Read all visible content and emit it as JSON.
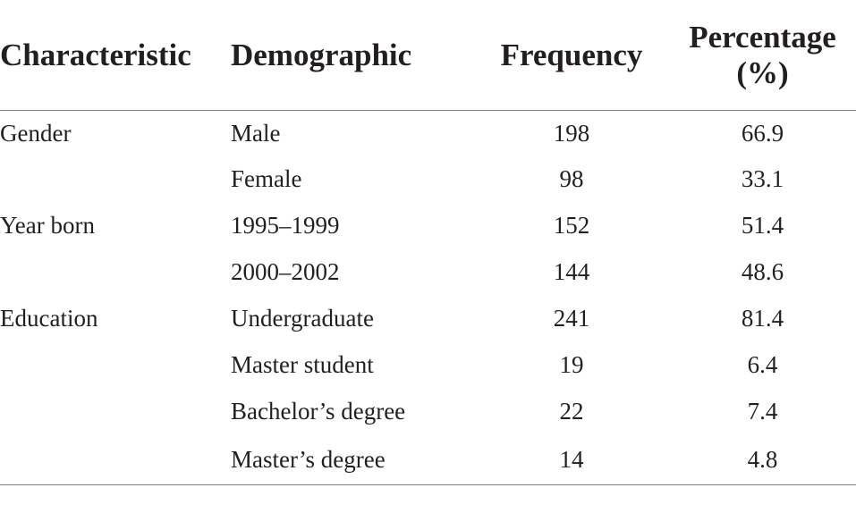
{
  "table": {
    "headers": {
      "characteristic": "Characteristic",
      "demographic": "Demographic",
      "frequency": "Frequency",
      "percentage_line1": "Percentage",
      "percentage_line2": "(%)"
    },
    "rows": [
      {
        "characteristic": "Gender",
        "demographic": "Male",
        "frequency": "198",
        "percentage": "66.9"
      },
      {
        "characteristic": "",
        "demographic": "Female",
        "frequency": "98",
        "percentage": "33.1"
      },
      {
        "characteristic": "Year born",
        "demographic": "1995–1999",
        "frequency": "152",
        "percentage": "51.4"
      },
      {
        "characteristic": "",
        "demographic": "2000–2002",
        "frequency": "144",
        "percentage": "48.6"
      },
      {
        "characteristic": "Education",
        "demographic": "Undergraduate",
        "frequency": "241",
        "percentage": "81.4"
      },
      {
        "characteristic": "",
        "demographic": "Master student",
        "frequency": "19",
        "percentage": "6.4"
      },
      {
        "characteristic": "",
        "demographic": "Bachelor’s degree",
        "frequency": "22",
        "percentage": "7.4"
      },
      {
        "characteristic": "",
        "demographic": "Master’s degree",
        "frequency": "14",
        "percentage": "4.8"
      }
    ]
  }
}
